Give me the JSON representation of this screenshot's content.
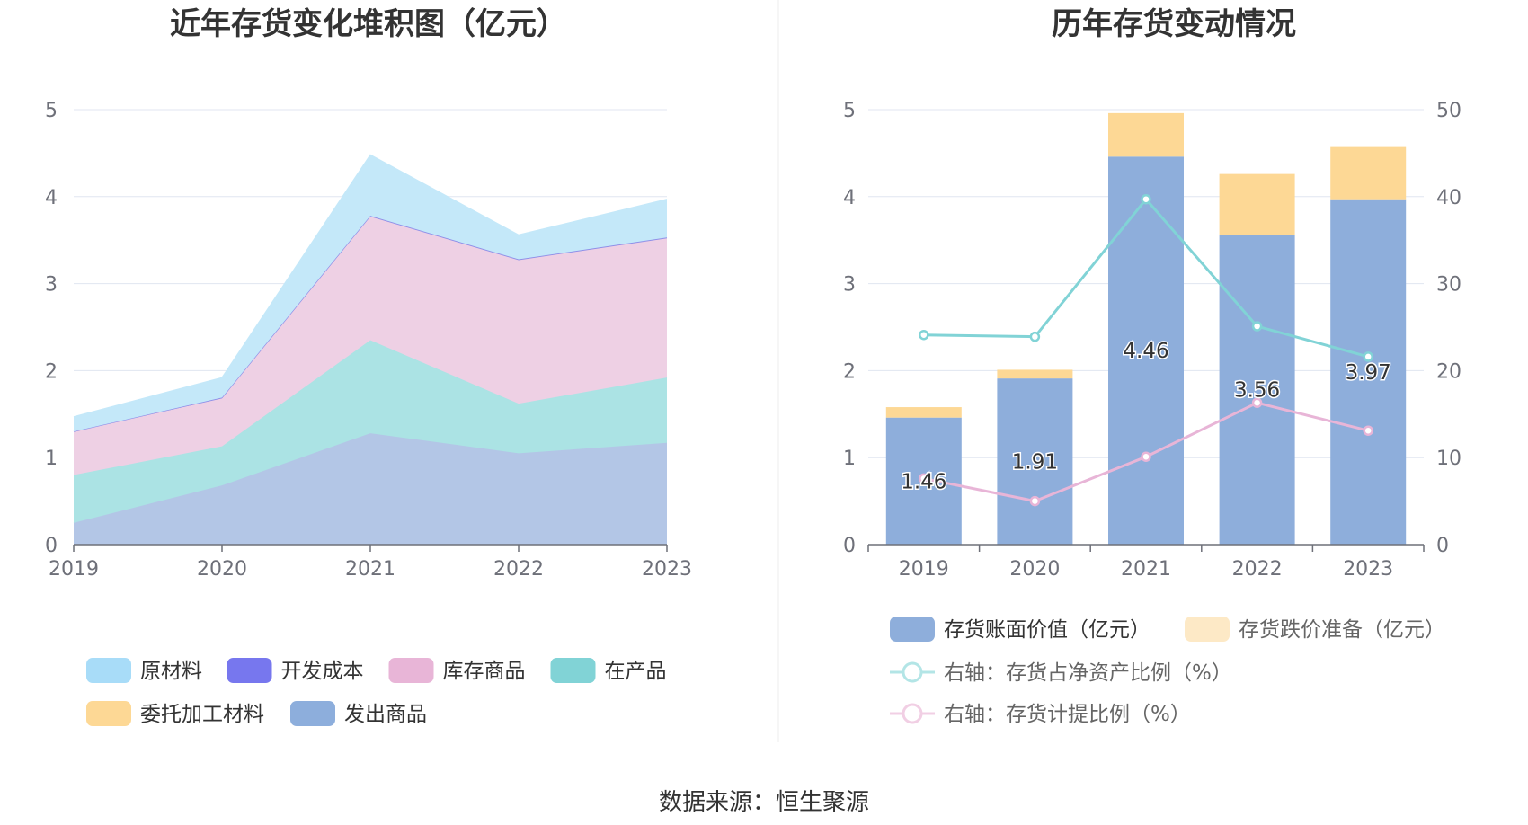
{
  "source_label": "数据来源：恒生聚源",
  "chart_data": [
    {
      "type": "area",
      "title": "近年存货变化堆积图（亿元）",
      "x": [
        "2019",
        "2020",
        "2021",
        "2022",
        "2023"
      ],
      "ylim": [
        0,
        5
      ],
      "yticks": [
        "0",
        "1",
        "2",
        "3",
        "4",
        "5"
      ],
      "grid": true,
      "stacked": true,
      "legend_position": "bottom",
      "series": [
        {
          "name": "发出商品",
          "color": "#b3c6e6",
          "legend_color": "#8daedc",
          "values": [
            0.25,
            0.68,
            1.28,
            1.05,
            1.17
          ]
        },
        {
          "name": "在产品",
          "color": "#abe3e4",
          "legend_color": "#81d3d6",
          "values": [
            0.55,
            0.45,
            1.07,
            0.57,
            0.75
          ]
        },
        {
          "name": "库存商品",
          "color": "#eed0e4",
          "legend_color": "#e8b5d7",
          "values": [
            0.5,
            0.55,
            1.42,
            1.65,
            1.6
          ]
        },
        {
          "name": "开发成本",
          "color": "#8f8fe8",
          "legend_color": "#7777ee",
          "values": [
            0.0,
            0.01,
            0.01,
            0.01,
            0.01
          ]
        },
        {
          "name": "原材料",
          "color": "#c4e8f9",
          "legend_color": "#a8dcf8",
          "values": [
            0.17,
            0.23,
            0.7,
            0.28,
            0.44
          ]
        },
        {
          "name": "委托加工材料",
          "color": "#fdd895",
          "legend_color": "#fdd895",
          "values": [
            0.0,
            0.0,
            0.0,
            0.0,
            0.0
          ]
        }
      ],
      "legend_order": [
        "原材料",
        "开发成本",
        "库存商品",
        "在产品",
        "委托加工材料",
        "发出商品"
      ]
    },
    {
      "type": "bar",
      "title": "历年存货变动情况",
      "categories": [
        "2019",
        "2020",
        "2021",
        "2022",
        "2023"
      ],
      "ylim": [
        0,
        5
      ],
      "yticks": [
        "0",
        "1",
        "2",
        "3",
        "4",
        "5"
      ],
      "y2lim": [
        0,
        50
      ],
      "y2ticks": [
        "0",
        "10",
        "20",
        "30",
        "40",
        "50"
      ],
      "grid": true,
      "legend_position": "bottom",
      "series": [
        {
          "name": "存货账面价值（亿元）",
          "type": "bar",
          "axis": "left",
          "color": "#8eaedb",
          "values": [
            1.46,
            1.91,
            4.46,
            3.56,
            3.97
          ],
          "data_labels": [
            "1.46",
            "1.91",
            "4.46",
            "3.56",
            "3.97"
          ]
        },
        {
          "name": "存货跌价准备（亿元）",
          "type": "bar",
          "axis": "left",
          "color": "#fdd895",
          "legend_color": "#fde9c6",
          "values": [
            0.12,
            0.1,
            0.5,
            0.7,
            0.6
          ]
        },
        {
          "name": "右轴：存货占净资产比例（%）",
          "type": "line",
          "axis": "right",
          "color": "#81d3d6",
          "legend_color": "#b3e5e6",
          "values": [
            24.1,
            23.9,
            39.7,
            25.1,
            21.6
          ]
        },
        {
          "name": "右轴：存货计提比例（%）",
          "type": "line",
          "axis": "right",
          "color": "#e8b5d7",
          "legend_color": "#f1cfe4",
          "values": [
            7.6,
            5.0,
            10.1,
            16.3,
            13.1
          ]
        }
      ]
    }
  ]
}
